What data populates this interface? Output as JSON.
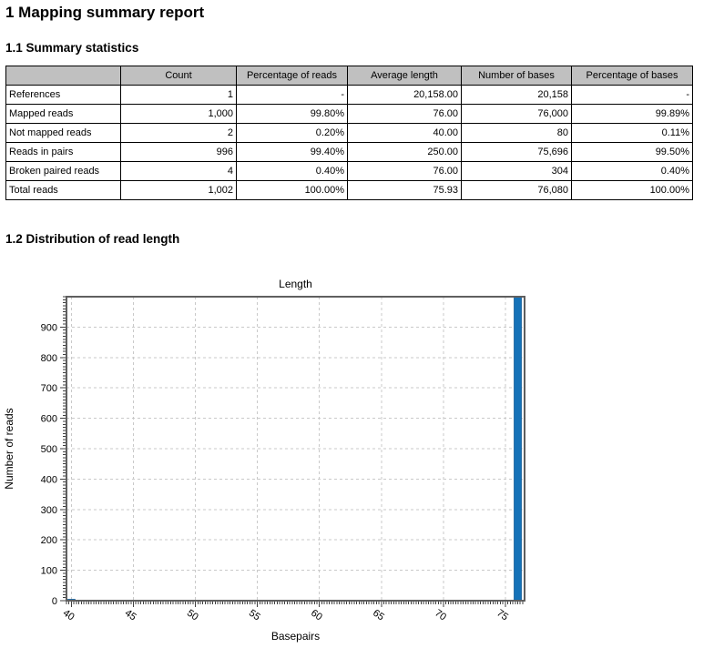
{
  "headings": {
    "report": "1 Mapping summary report",
    "summary": "1.1 Summary statistics",
    "distribution": "1.2 Distribution of read length"
  },
  "table": {
    "header_bg": "#c0c0c0",
    "columns": [
      "",
      "Count",
      "Percentage of reads",
      "Average length",
      "Number of bases",
      "Percentage of bases"
    ],
    "rows": [
      [
        "References",
        "1",
        "-",
        "20,158.00",
        "20,158",
        "-"
      ],
      [
        "Mapped reads",
        "1,000",
        "99.80%",
        "76.00",
        "76,000",
        "99.89%"
      ],
      [
        "Not mapped reads",
        "2",
        "0.20%",
        "40.00",
        "80",
        "0.11%"
      ],
      [
        "Reads in pairs",
        "996",
        "99.40%",
        "250.00",
        "75,696",
        "99.50%"
      ],
      [
        "Broken paired reads",
        "4",
        "0.40%",
        "76.00",
        "304",
        "0.40%"
      ],
      [
        "Total reads",
        "1,002",
        "100.00%",
        "75.93",
        "76,080",
        "100.00%"
      ]
    ]
  },
  "chart_data": {
    "type": "bar",
    "title": "Length",
    "xlabel": "Basepairs",
    "ylabel": "Number of reads",
    "x": [
      40,
      76
    ],
    "values": [
      2,
      1000
    ],
    "xlim": [
      39.6,
      76.55
    ],
    "ylim": [
      0,
      1000
    ],
    "x_major_ticks": [
      40,
      45,
      50,
      55,
      60,
      65,
      70,
      75
    ],
    "x_minor_step": 0.2,
    "y_major_ticks": [
      0,
      100,
      200,
      300,
      400,
      500,
      600,
      700,
      800,
      900
    ],
    "y_minor_step": 10,
    "grid": true,
    "legend": "none",
    "bar_color": "#1572b8",
    "bar_edge_color": "#0e5a94",
    "grid_color": "#c9c9c9",
    "frame_color": "#5f5f5f",
    "tick_color": "#404040"
  }
}
